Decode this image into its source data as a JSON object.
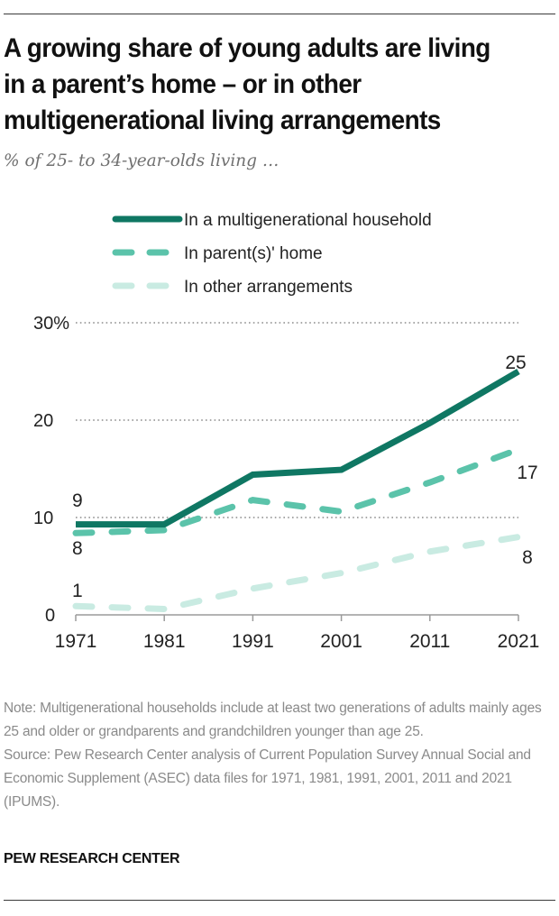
{
  "header": {
    "title": "A growing share of young adults are living in a parent’s home – or in other multigenerational living arrangements",
    "subtitle": "% of 25- to 34-year-olds living …"
  },
  "footer": {
    "note": "Note: Multigenerational households include at least two generations of adults mainly ages 25 and older or grandparents and grandchildren younger than age 25.",
    "source": "Source: Pew Research Center analysis of Current Population Survey Annual Social and Economic Supplement (ASEC) data files for 1971, 1981, 1991, 2001, 2011 and 2021 (IPUMS).",
    "brand": "PEW RESEARCH CENTER"
  },
  "chart_data": {
    "type": "line",
    "title": "A growing share of young adults are living in a parent’s home – or in other multigenerational living arrangements",
    "subtitle": "% of 25- to 34-year-olds living …",
    "xlabel": "",
    "ylabel": "",
    "x": [
      1971,
      1981,
      1991,
      2001,
      2011,
      2021
    ],
    "ylim": [
      0,
      30
    ],
    "yticks": [
      0,
      10,
      20,
      30
    ],
    "ytick_labels": [
      "0",
      "10",
      "20",
      "30%"
    ],
    "grid": true,
    "legend_position": "top",
    "series": [
      {
        "name": "In a multigenerational household",
        "style": "solid",
        "color": "#0f7763",
        "values": [
          9.3,
          9.3,
          14.4,
          14.9,
          19.7,
          25.0
        ],
        "labels": [
          {
            "x": 1971,
            "text": "9"
          },
          {
            "x": 2021,
            "text": "25"
          }
        ]
      },
      {
        "name": "In parent(s)' home",
        "style": "dashed",
        "color": "#5bc3aa",
        "values": [
          8.4,
          8.7,
          11.8,
          10.6,
          13.6,
          17.0
        ],
        "labels": [
          {
            "x": 1971,
            "text": "8"
          },
          {
            "x": 2021,
            "text": "17"
          }
        ]
      },
      {
        "name": "In other arrangements",
        "style": "dashed",
        "color": "#c9ebe2",
        "values": [
          0.9,
          0.6,
          2.7,
          4.3,
          6.5,
          8.0
        ],
        "labels": [
          {
            "x": 1971,
            "text": "1"
          },
          {
            "x": 2021,
            "text": "8"
          }
        ]
      }
    ]
  }
}
